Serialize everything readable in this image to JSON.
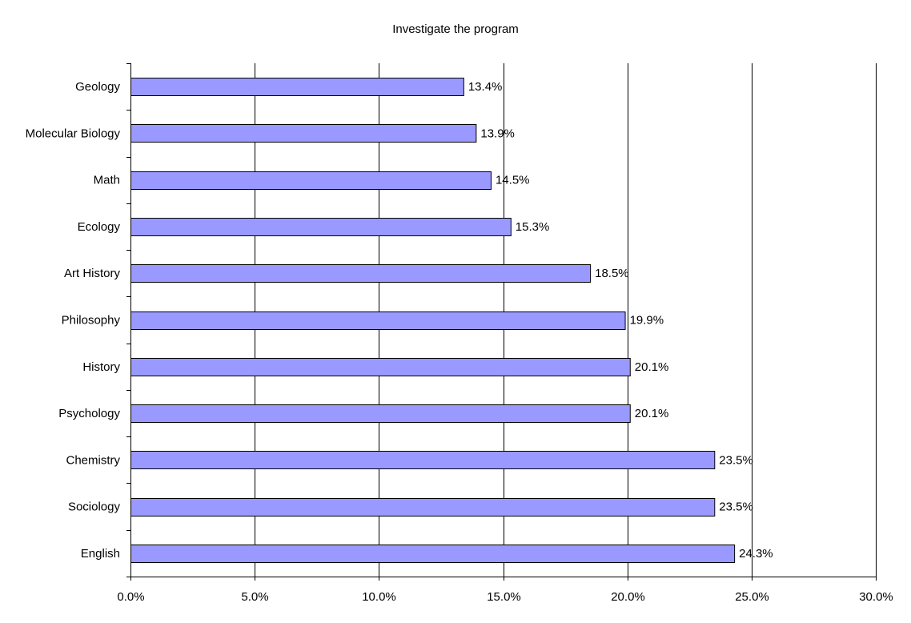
{
  "chart_data": {
    "type": "bar",
    "orientation": "horizontal",
    "title": "Investigate the program",
    "xlabel": "",
    "ylabel": "",
    "categories": [
      "Geology",
      "Molecular Biology",
      "Math",
      "Ecology",
      "Art History",
      "Philosophy",
      "History",
      "Psychology",
      "Chemistry",
      "Sociology",
      "English"
    ],
    "values": [
      13.4,
      13.9,
      14.5,
      15.3,
      18.5,
      19.9,
      20.1,
      20.1,
      23.5,
      23.5,
      24.3
    ],
    "data_labels": [
      "13.4%",
      "13.9%",
      "14.5%",
      "15.3%",
      "18.5%",
      "19.9%",
      "20.1%",
      "20.1%",
      "23.5%",
      "23.5%",
      "24.3%"
    ],
    "xlim": [
      0,
      30
    ],
    "x_ticks": [
      0,
      5,
      10,
      15,
      20,
      25,
      30
    ],
    "x_tick_labels": [
      "0.0%",
      "5.0%",
      "10.0%",
      "15.0%",
      "20.0%",
      "25.0%",
      "30.0%"
    ],
    "grid": "vertical-major",
    "legend": "none",
    "bar_color": "#9999ff",
    "bar_border_color": "#000000"
  }
}
